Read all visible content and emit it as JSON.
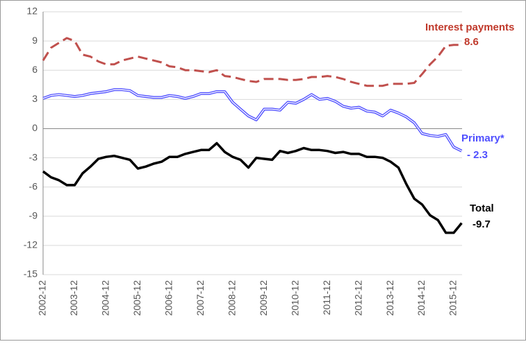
{
  "chart_data": {
    "type": "line",
    "categories": [
      "2002-12",
      null,
      null,
      null,
      "2003-12",
      null,
      null,
      null,
      "2004-12",
      null,
      null,
      null,
      "2005-12",
      null,
      null,
      null,
      "2006-12",
      null,
      null,
      null,
      "2007-12",
      null,
      null,
      null,
      "2008-12",
      null,
      null,
      null,
      "2009-12",
      null,
      null,
      null,
      "2010-12",
      null,
      null,
      null,
      "2011-12",
      null,
      null,
      null,
      "2012-12",
      null,
      null,
      null,
      "2013-12",
      null,
      null,
      null,
      "2014-12",
      null,
      null,
      null,
      "2015-12",
      null
    ],
    "series": [
      {
        "name": "Interest payments",
        "color": "#c0504d",
        "dash": true,
        "values": [
          7.0,
          8.3,
          8.8,
          9.3,
          9.0,
          7.6,
          7.4,
          6.9,
          6.6,
          6.6,
          7.0,
          7.2,
          7.4,
          7.2,
          7.0,
          6.8,
          6.4,
          6.3,
          6.0,
          6.0,
          5.9,
          5.8,
          6.0,
          5.4,
          5.3,
          5.1,
          4.9,
          4.8,
          5.1,
          5.1,
          5.1,
          5.0,
          5.0,
          5.1,
          5.3,
          5.3,
          5.4,
          5.3,
          5.1,
          4.8,
          4.6,
          4.4,
          4.4,
          4.4,
          4.6,
          4.6,
          4.6,
          4.7,
          5.6,
          6.6,
          7.4,
          8.5,
          8.6,
          8.6
        ]
      },
      {
        "name": "Primary*",
        "color": "#4f4fff",
        "double": true,
        "values": [
          3.1,
          3.4,
          3.5,
          3.4,
          3.3,
          3.4,
          3.6,
          3.7,
          3.8,
          4.0,
          4.0,
          3.9,
          3.4,
          3.3,
          3.2,
          3.2,
          3.4,
          3.3,
          3.1,
          3.3,
          3.6,
          3.6,
          3.8,
          3.8,
          2.7,
          2.0,
          1.3,
          0.9,
          2.0,
          2.0,
          1.9,
          2.7,
          2.6,
          3.0,
          3.5,
          3.0,
          3.1,
          2.8,
          2.3,
          2.1,
          2.2,
          1.8,
          1.7,
          1.3,
          1.9,
          1.6,
          1.2,
          0.6,
          -0.5,
          -0.7,
          -0.8,
          -0.6,
          -1.9,
          -2.3
        ]
      },
      {
        "name": "Total",
        "color": "#000000",
        "values": [
          -4.4,
          -5.0,
          -5.3,
          -5.8,
          -5.8,
          -4.6,
          -3.9,
          -3.1,
          -2.9,
          -2.8,
          -3.0,
          -3.2,
          -4.1,
          -3.9,
          -3.6,
          -3.4,
          -2.9,
          -2.9,
          -2.6,
          -2.4,
          -2.2,
          -2.2,
          -1.5,
          -2.4,
          -2.9,
          -3.2,
          -4.0,
          -3.0,
          -3.1,
          -3.2,
          -2.3,
          -2.5,
          -2.3,
          -2.0,
          -2.2,
          -2.2,
          -2.3,
          -2.5,
          -2.4,
          -2.6,
          -2.6,
          -2.9,
          -2.9,
          -3.0,
          -3.4,
          -4.0,
          -5.7,
          -7.2,
          -7.8,
          -8.9,
          -9.4,
          -10.7,
          -10.7,
          -9.7
        ]
      }
    ],
    "annotations": [
      "Interest payments",
      "8.6",
      "Primary*",
      "- 2.3",
      "Total",
      "-9.7"
    ],
    "ylim": [
      -15,
      12
    ],
    "yticks": [
      -15,
      -12,
      -9,
      -6,
      -3,
      0,
      3,
      6,
      9,
      12
    ],
    "grid": true
  }
}
